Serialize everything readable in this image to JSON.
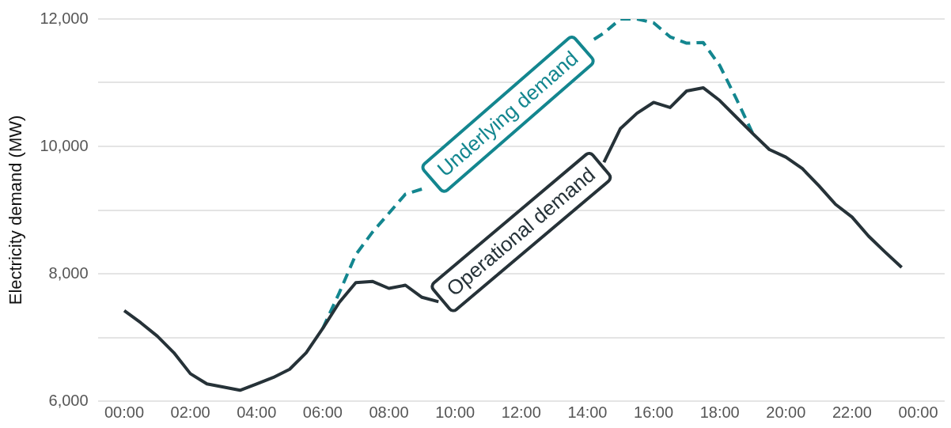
{
  "chart_data": {
    "type": "line",
    "ylabel": "Electricity demand (MW)",
    "xlim": [
      -0.8,
      24.8
    ],
    "ylim": [
      6000,
      12000
    ],
    "xticks": [
      {
        "value": 0,
        "label": "00:00"
      },
      {
        "value": 2,
        "label": "02:00"
      },
      {
        "value": 4,
        "label": "04:00"
      },
      {
        "value": 6,
        "label": "06:00"
      },
      {
        "value": 8,
        "label": "08:00"
      },
      {
        "value": 10,
        "label": "10:00"
      },
      {
        "value": 12,
        "label": "12:00"
      },
      {
        "value": 14,
        "label": "14:00"
      },
      {
        "value": 16,
        "label": "16:00"
      },
      {
        "value": 18,
        "label": "18:00"
      },
      {
        "value": 20,
        "label": "20:00"
      },
      {
        "value": 22,
        "label": "22:00"
      },
      {
        "value": 24,
        "label": "00:00"
      }
    ],
    "yticks": [
      {
        "value": 6000,
        "label": "6,000"
      },
      {
        "value": 7000,
        "label": null
      },
      {
        "value": 8000,
        "label": "8,000"
      },
      {
        "value": 9000,
        "label": null
      },
      {
        "value": 10000,
        "label": "10,000"
      },
      {
        "value": 11000,
        "label": null
      },
      {
        "value": 12000,
        "label": "12,000"
      }
    ],
    "grid": "y",
    "legend": false,
    "marker": "none",
    "series": [
      {
        "name": "Operational demand",
        "color": "#263238",
        "line_style": "solid",
        "x": [
          0,
          0.5,
          1,
          1.5,
          2,
          2.5,
          3,
          3.5,
          4,
          4.5,
          5,
          5.5,
          6,
          6.5,
          7,
          7.5,
          8,
          8.5,
          9,
          9.5,
          10,
          11,
          12,
          13,
          14,
          14.5,
          15,
          15.5,
          16,
          16.5,
          17,
          17.5,
          18,
          18.5,
          19,
          19.5,
          20,
          20.5,
          21,
          21.5,
          22,
          22.5,
          23,
          23.5
        ],
        "values": [
          7420,
          7230,
          7020,
          6760,
          6430,
          6270,
          6220,
          6170,
          6270,
          6370,
          6500,
          6760,
          7140,
          7550,
          7860,
          7880,
          7770,
          7820,
          7630,
          7560,
          null,
          null,
          null,
          null,
          null,
          9750,
          10280,
          10520,
          10690,
          10610,
          10870,
          10920,
          10720,
          10460,
          10200,
          9950,
          9830,
          9650,
          9380,
          9090,
          8890,
          8590,
          8340,
          8100
        ]
      },
      {
        "name": "Underlying demand",
        "color": "#13868f",
        "line_style": "dashed",
        "x": [
          6,
          6.5,
          7,
          7.5,
          8,
          8.5,
          9,
          9.5,
          10,
          11,
          12,
          13,
          14,
          14.2,
          14.5,
          15,
          15.5,
          16,
          16.5,
          17,
          17.5,
          18,
          18.5,
          19
        ],
        "values": [
          7140,
          7700,
          8300,
          8650,
          8950,
          9250,
          9330,
          null,
          null,
          null,
          null,
          null,
          null,
          11680,
          11780,
          12000,
          12000,
          11940,
          11720,
          11620,
          11630,
          11270,
          10750,
          10200
        ]
      }
    ]
  }
}
